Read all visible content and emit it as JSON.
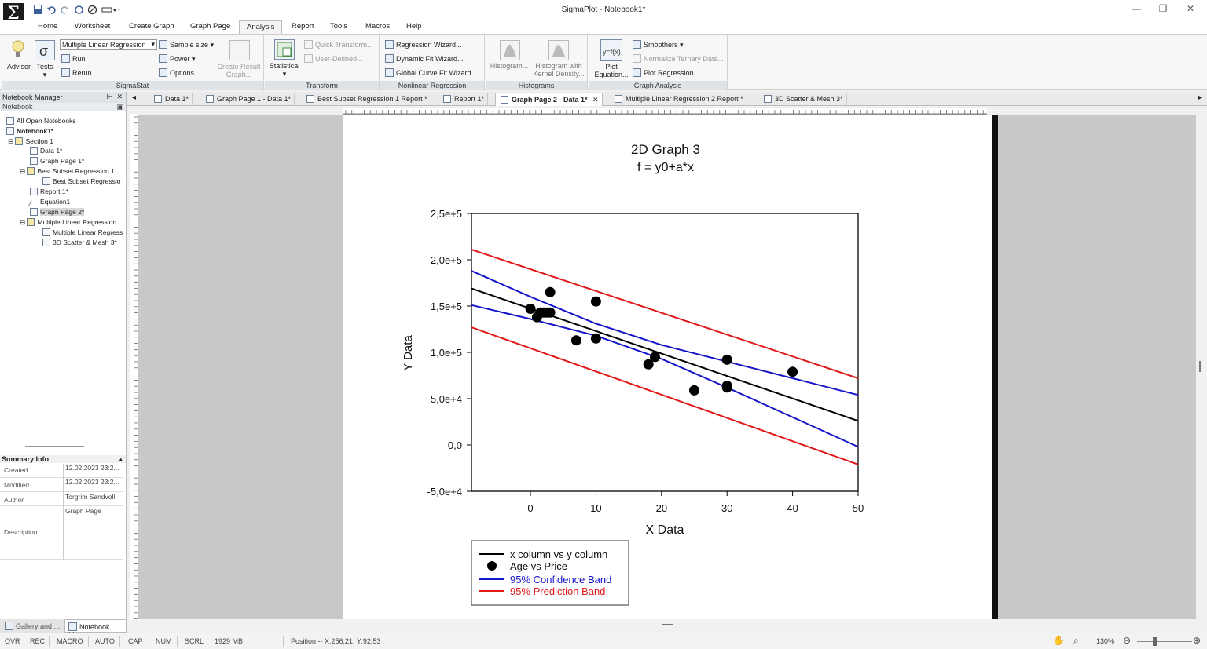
{
  "window": {
    "title": "SigmaPlot - Notebook1*"
  },
  "ribbon_tabs": [
    "Home",
    "Worksheet",
    "Create Graph",
    "Graph Page",
    "Analysis",
    "Report",
    "Tools",
    "Macros",
    "Help"
  ],
  "ribbon": {
    "sigmastat": {
      "label": "SigmaStat",
      "advisor": "Advisor",
      "tests": "Tests",
      "combo_value": "Multiple Linear Regression",
      "run": "Run",
      "rerun": "Rerun",
      "sample_size": "Sample size",
      "power": "Power",
      "options": "Options",
      "create_result_graph_1": "Create Result",
      "create_result_graph_2": "Graph..."
    },
    "transform": {
      "label": "Transform",
      "statistical": "Statistical",
      "quick_transform": "Quick Transform...",
      "user_defined": "User-Defined..."
    },
    "nonlinear": {
      "label": "Nonlinear Regression",
      "regression_wizard": "Regression Wizard...",
      "dynamic_fit": "Dynamic Fit Wizard...",
      "global_curve": "Global Curve Fit Wizard..."
    },
    "histograms": {
      "label": "Histograms",
      "histogram": "Histogram...",
      "kernel_1": "Histogram with",
      "kernel_2": "Kernel Density..."
    },
    "graph_analysis": {
      "label": "Graph Analysis",
      "plot_eq_1": "Plot",
      "plot_eq_2": "Equation...",
      "smoothers": "Smoothers",
      "normalize": "Normalize Ternary Data...",
      "plot_regression": "Plot Regression..."
    }
  },
  "doc_tabs": [
    "Data 1*",
    "Graph Page 1 - Data 1*",
    "Best Subset Regression 1 Report *",
    "Report 1*",
    "Graph Page 2 - Data 1*",
    "Multiple Linear Regression 2 Report *",
    "3D Scatter & Mesh 3*"
  ],
  "notebook_manager": {
    "title": "Notebook Manager",
    "sub": "Notebook",
    "tree": [
      "All Open Notebooks",
      "Notebook1*",
      "Section 1",
      "Data 1*",
      "Graph Page 1*",
      "Best Subset Regression 1",
      "Best Subset Regressio",
      "Report 1*",
      "Equation1",
      "Graph Page 2*",
      "Multiple Linear Regression",
      "Multiple Linear Regress",
      "3D Scatter & Mesh 3*"
    ],
    "summary_title": "Summary Info",
    "summary": {
      "created_label": "Created",
      "created": "12.02.2023 23:2...",
      "modified_label": "Modified",
      "modified": "12.02.2023 23:2...",
      "author_label": "Author",
      "author": "Torgrim Sandvoll",
      "description_label": "Description",
      "description": "Graph Page"
    },
    "bottom_tabs": [
      "Gallery and ...",
      "Notebook M..."
    ]
  },
  "chart_data": {
    "type": "scatter",
    "title": "2D Graph 3",
    "subtitle": "f = y0+a*x",
    "xlabel": "X Data",
    "ylabel": "Y Data",
    "xlim": [
      -9,
      50
    ],
    "ylim": [
      -50000,
      250000
    ],
    "x_ticks": [
      0,
      10,
      20,
      30,
      40,
      50
    ],
    "x_tick_labels": [
      "0",
      "10",
      "20",
      "30",
      "40",
      "50"
    ],
    "y_ticks": [
      -50000,
      0,
      50000,
      100000,
      150000,
      200000,
      250000
    ],
    "y_tick_labels": [
      "-5,0e+4",
      "0,0",
      "5,0e+4",
      "1,0e+5",
      "1,5e+5",
      "2,0e+5",
      "2,5e+5"
    ],
    "legend_position": "bottom-left",
    "legend": [
      {
        "label": "x column vs y column",
        "type": "line",
        "color": "#000000"
      },
      {
        "label": "Age vs Price",
        "type": "marker",
        "color": "#000000"
      },
      {
        "label": "95% Confidence Band",
        "type": "line",
        "color": "#1515c8"
      },
      {
        "label": "95% Prediction Band",
        "type": "line",
        "color": "#e01818"
      }
    ],
    "points": {
      "x": [
        0,
        1,
        1.5,
        2,
        2.5,
        3,
        3,
        7,
        10,
        10,
        18,
        19,
        25,
        30,
        30,
        30,
        40
      ],
      "y": [
        147000,
        138000,
        143000,
        143000,
        143000,
        165000,
        143000,
        113000,
        155000,
        115000,
        87000,
        95000,
        59000,
        92000,
        64000,
        62000,
        79000
      ]
    },
    "series": [
      {
        "name": "x column vs y column",
        "color": "#000000",
        "x": [
          -9,
          50
        ],
        "y": [
          169000,
          26000
        ]
      },
      {
        "color": "#1515c8",
        "x": [
          -9,
          0,
          10,
          20,
          30,
          40,
          50
        ],
        "y": [
          188000,
          160000,
          131000,
          108000,
          90000,
          72000,
          54000
        ]
      },
      {
        "color": "#1515c8",
        "x": [
          -9,
          0,
          10,
          20,
          30,
          40,
          50
        ],
        "y": [
          151000,
          136000,
          118000,
          93000,
          62000,
          30000,
          -2000
        ]
      },
      {
        "color": "#e01818",
        "x": [
          -9,
          50
        ],
        "y": [
          211000,
          72000
        ]
      },
      {
        "color": "#e01818",
        "x": [
          -9,
          50
        ],
        "y": [
          127000,
          -21000
        ]
      }
    ]
  },
  "status": {
    "ovr": "OVR",
    "rec": "REC",
    "macro": "MACRO",
    "auto": "AUTO",
    "cap": "CAP",
    "num": "NUM",
    "scrl": "SCRL",
    "memory": "1929 MB",
    "position": "Position -- X:256,21, Y:92,53",
    "zoom": "130%"
  }
}
